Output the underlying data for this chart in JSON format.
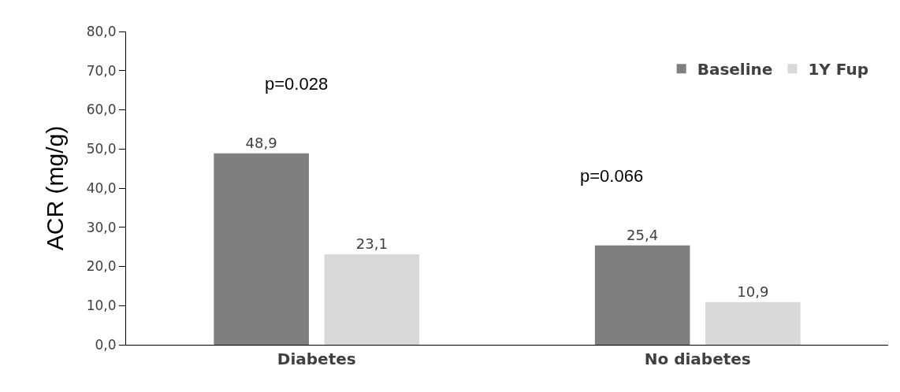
{
  "chart_data": {
    "type": "bar",
    "ylabel": "ACR (mg/g)",
    "categories": [
      "Diabetes",
      "No diabetes"
    ],
    "series": [
      {
        "name": "Baseline",
        "color": "#7f7f7f",
        "values": [
          48.9,
          25.4
        ],
        "value_labels": [
          "48,9",
          "25,4"
        ]
      },
      {
        "name": "1Y Fup",
        "color": "#d9d9d9",
        "values": [
          23.1,
          10.9
        ],
        "value_labels": [
          "23,1",
          "10,9"
        ]
      }
    ],
    "ylim": [
      0,
      80
    ],
    "yticks": [
      {
        "value": 0,
        "label": "0,0"
      },
      {
        "value": 10,
        "label": "10,0"
      },
      {
        "value": 20,
        "label": "20,0"
      },
      {
        "value": 30,
        "label": "30,0"
      },
      {
        "value": 40,
        "label": "40,0"
      },
      {
        "value": 50,
        "label": "50,0"
      },
      {
        "value": 60,
        "label": "60,0"
      },
      {
        "value": 70,
        "label": "70,0"
      },
      {
        "value": 80,
        "label": "80,0"
      }
    ],
    "annotations": [
      "p=0.028",
      "p=0.066"
    ],
    "grid": false,
    "legend": "top right"
  }
}
